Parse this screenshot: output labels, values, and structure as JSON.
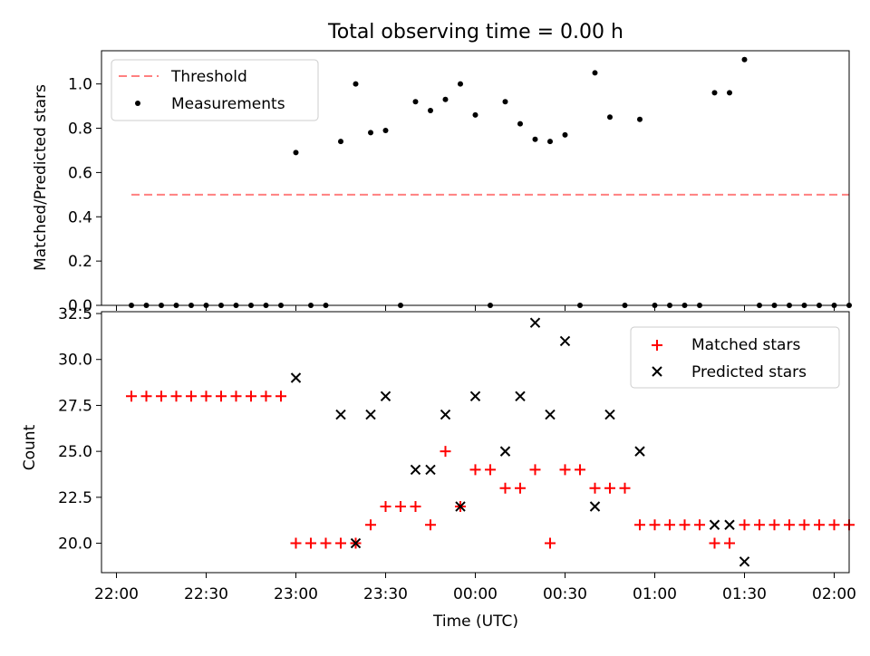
{
  "chart_data": [
    {
      "type": "scatter",
      "title": "Total observing time = 0.00 h",
      "xlabel": "",
      "ylabel": "Matched/Predicted stars",
      "x_ticks": [
        "22:00",
        "22:30",
        "23:00",
        "23:30",
        "00:00",
        "00:30",
        "01:00",
        "01:30",
        "02:00"
      ],
      "x_range_min": [
        -5,
        245
      ],
      "ylim": [
        0,
        1.15
      ],
      "y_ticks": [
        0.0,
        0.2,
        0.4,
        0.6,
        0.8,
        1.0
      ],
      "y_tick_labels": [
        "0.0",
        "0.2",
        "0.4",
        "0.6",
        "0.8",
        "1.0"
      ],
      "legend_position": "top-left",
      "series": [
        {
          "name": "Threshold",
          "kind": "line",
          "color": "#ff8080",
          "style": "dashed",
          "x": [
            5,
            245
          ],
          "y": [
            0.5,
            0.5
          ]
        },
        {
          "name": "Measurements",
          "kind": "scatter",
          "color": "#000000",
          "points": [
            [
              5,
              0
            ],
            [
              10,
              0
            ],
            [
              15,
              0
            ],
            [
              20,
              0
            ],
            [
              25,
              0
            ],
            [
              30,
              0
            ],
            [
              35,
              0
            ],
            [
              40,
              0
            ],
            [
              45,
              0
            ],
            [
              50,
              0
            ],
            [
              55,
              0
            ],
            [
              60,
              0.69
            ],
            [
              65,
              0
            ],
            [
              70,
              0
            ],
            [
              75,
              0.74
            ],
            [
              80,
              1.0
            ],
            [
              85,
              0.78
            ],
            [
              90,
              0.79
            ],
            [
              95,
              0
            ],
            [
              100,
              0.92
            ],
            [
              105,
              0.88
            ],
            [
              110,
              0.93
            ],
            [
              115,
              1.0
            ],
            [
              120,
              0.86
            ],
            [
              125,
              0
            ],
            [
              130,
              0.92
            ],
            [
              135,
              0.82
            ],
            [
              140,
              0.75
            ],
            [
              145,
              0.74
            ],
            [
              150,
              0.77
            ],
            [
              155,
              0
            ],
            [
              160,
              1.05
            ],
            [
              165,
              0.85
            ],
            [
              170,
              0
            ],
            [
              175,
              0.84
            ],
            [
              180,
              0
            ],
            [
              185,
              0
            ],
            [
              190,
              0
            ],
            [
              195,
              0
            ],
            [
              200,
              0.96
            ],
            [
              205,
              0.96
            ],
            [
              210,
              1.11
            ],
            [
              215,
              0
            ],
            [
              220,
              0
            ],
            [
              225,
              0
            ],
            [
              230,
              0
            ],
            [
              235,
              0
            ],
            [
              240,
              0
            ],
            [
              245,
              0
            ]
          ]
        }
      ]
    },
    {
      "type": "scatter",
      "title": "",
      "xlabel": "Time (UTC)",
      "ylabel": "Count",
      "x_ticks": [
        "22:00",
        "22:30",
        "23:00",
        "23:30",
        "00:00",
        "00:30",
        "01:00",
        "01:30",
        "02:00"
      ],
      "x_range_min": [
        -5,
        245
      ],
      "ylim": [
        18.4,
        32.6
      ],
      "y_ticks": [
        20.0,
        22.5,
        25.0,
        27.5,
        30.0,
        32.5
      ],
      "y_tick_labels": [
        "20.0",
        "22.5",
        "25.0",
        "27.5",
        "30.0",
        "32.5"
      ],
      "legend_position": "top-right",
      "series": [
        {
          "name": "Matched stars",
          "kind": "plus",
          "color": "#ff0000",
          "points": [
            [
              5,
              28
            ],
            [
              10,
              28
            ],
            [
              15,
              28
            ],
            [
              20,
              28
            ],
            [
              25,
              28
            ],
            [
              30,
              28
            ],
            [
              35,
              28
            ],
            [
              40,
              28
            ],
            [
              45,
              28
            ],
            [
              50,
              28
            ],
            [
              55,
              28
            ],
            [
              60,
              20
            ],
            [
              65,
              20
            ],
            [
              70,
              20
            ],
            [
              75,
              20
            ],
            [
              80,
              20
            ],
            [
              85,
              21
            ],
            [
              90,
              22
            ],
            [
              95,
              22
            ],
            [
              100,
              22
            ],
            [
              105,
              21
            ],
            [
              110,
              25
            ],
            [
              115,
              22
            ],
            [
              120,
              24
            ],
            [
              125,
              24
            ],
            [
              130,
              23
            ],
            [
              135,
              23
            ],
            [
              140,
              24
            ],
            [
              145,
              20
            ],
            [
              150,
              24
            ],
            [
              155,
              24
            ],
            [
              160,
              23
            ],
            [
              165,
              23
            ],
            [
              170,
              23
            ],
            [
              175,
              21
            ],
            [
              180,
              21
            ],
            [
              185,
              21
            ],
            [
              190,
              21
            ],
            [
              195,
              21
            ],
            [
              200,
              20
            ],
            [
              205,
              20
            ],
            [
              210,
              21
            ],
            [
              215,
              21
            ],
            [
              220,
              21
            ],
            [
              225,
              21
            ],
            [
              230,
              21
            ],
            [
              235,
              21
            ],
            [
              240,
              21
            ],
            [
              245,
              21
            ]
          ]
        },
        {
          "name": "Predicted stars",
          "kind": "cross",
          "color": "#000000",
          "points": [
            [
              60,
              29
            ],
            [
              75,
              27
            ],
            [
              80,
              20
            ],
            [
              85,
              27
            ],
            [
              90,
              28
            ],
            [
              100,
              24
            ],
            [
              105,
              24
            ],
            [
              110,
              27
            ],
            [
              115,
              22
            ],
            [
              120,
              28
            ],
            [
              130,
              25
            ],
            [
              135,
              28
            ],
            [
              140,
              32
            ],
            [
              145,
              27
            ],
            [
              150,
              31
            ],
            [
              160,
              22
            ],
            [
              165,
              27
            ],
            [
              175,
              25
            ],
            [
              200,
              21
            ],
            [
              205,
              21
            ],
            [
              210,
              19
            ]
          ]
        }
      ]
    }
  ]
}
